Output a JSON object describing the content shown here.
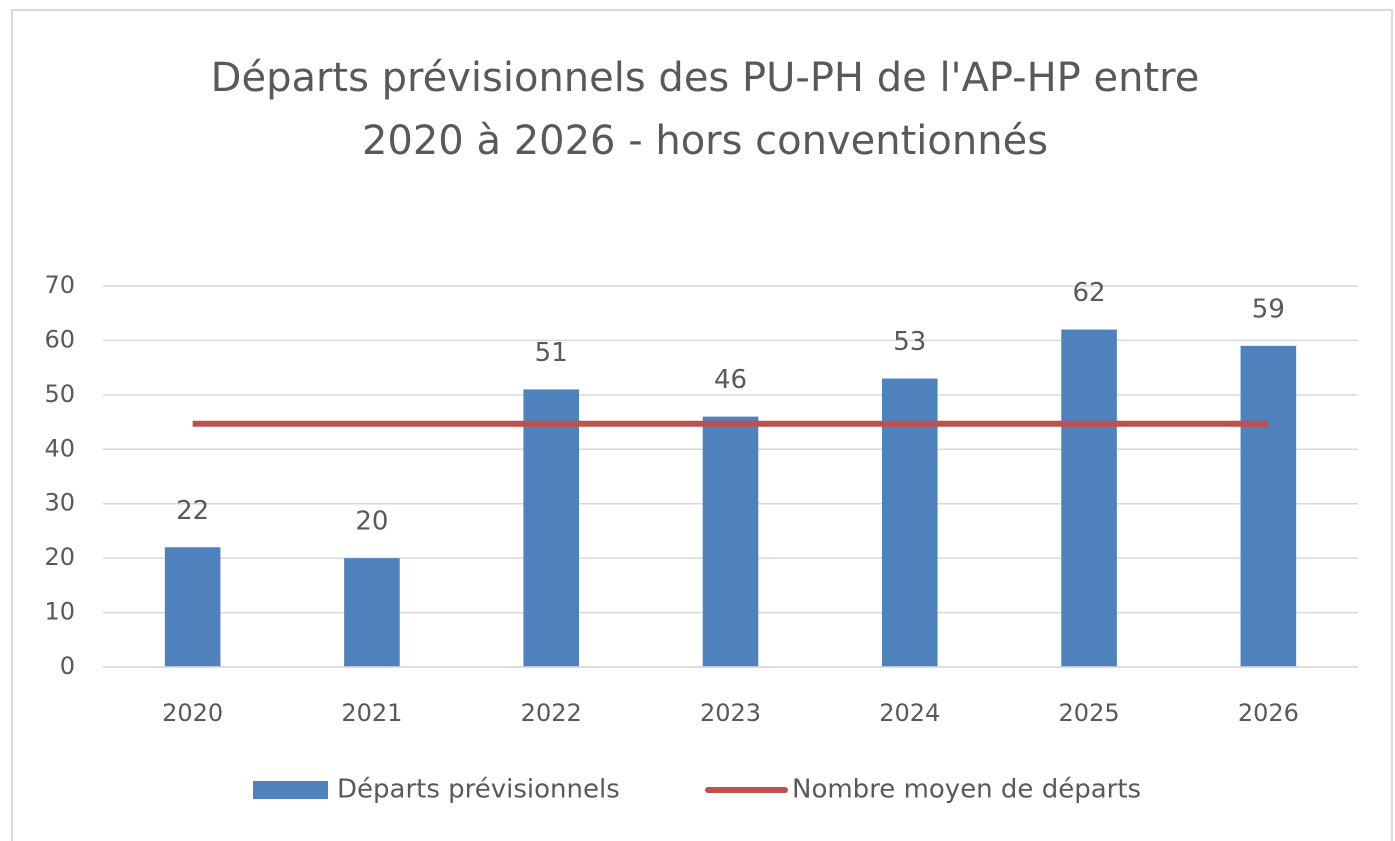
{
  "chart_data": {
    "type": "bar",
    "title": [
      "Départs prévisionnels des PU-PH de l'AP-HP entre",
      "2020 à 2026 - hors conventionnés"
    ],
    "categories": [
      "2020",
      "2021",
      "2022",
      "2023",
      "2024",
      "2025",
      "2026"
    ],
    "series": [
      {
        "name": "Départs prévisionnels",
        "type": "bar",
        "color": "#4f81bd",
        "values": [
          22,
          20,
          51,
          46,
          53,
          62,
          59
        ],
        "data_labels": true
      },
      {
        "name": "Nombre moyen de départs",
        "type": "line",
        "color": "#c0504d",
        "values": [
          44.7,
          44.7,
          44.7,
          44.7,
          44.7,
          44.7,
          44.7
        ]
      }
    ],
    "ylim": [
      0,
      70
    ],
    "yticks": [
      0,
      10,
      20,
      30,
      40,
      50,
      60,
      70
    ],
    "grid": true,
    "legend": "bottom"
  }
}
